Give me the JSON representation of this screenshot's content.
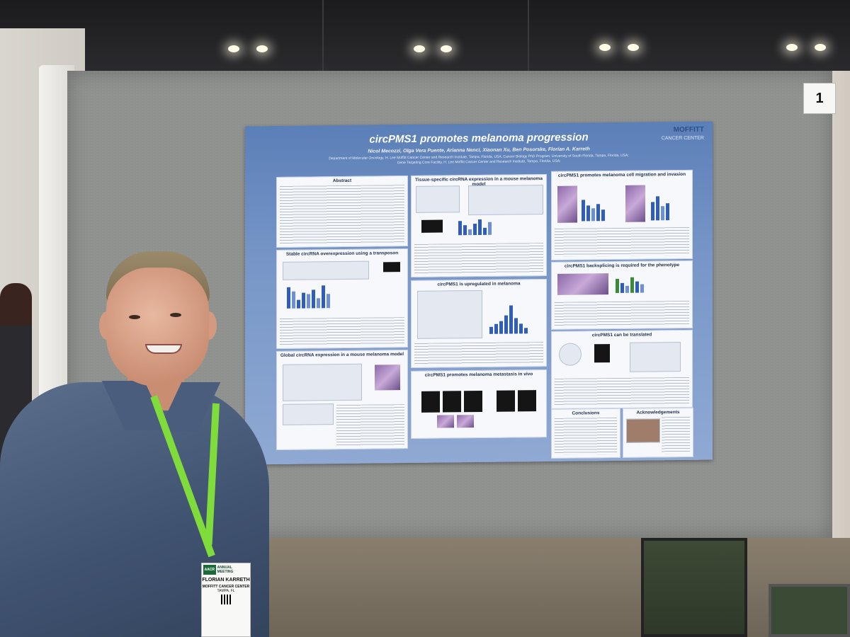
{
  "scene": {
    "board_number": "1"
  },
  "poster": {
    "title": "circPMS1 promotes melanoma progression",
    "logo": "MOFFITT",
    "logo_sub": "CANCER CENTER",
    "authors": "Nicol Mecozzi, Olga Vera Puente, Arianna Nenci, Xiaonan Xu, Ben Posorske, Florian A. Karreth",
    "affiliation_1": "Department of Molecular Oncology, H. Lee Moffitt Cancer Center and Research Institute, Tampa, Florida, USA; Cancer Biology PhD Program, University of South Florida, Tampa, Florida, USA;",
    "affiliation_2": "Gene Targeting Core Facility, H. Lee Moffitt Cancer Center and Research Institute, Tampa, Florida, USA;",
    "sections": {
      "abstract": "Abstract",
      "stable": "Stable circRNA overexpression using a transposon",
      "global": "Global circRNA expression in a mouse melanoma model",
      "tissue": "Tissue-specific circRNA expression in a mouse melanoma model",
      "upregulated": "circPMS1 is upregulated in melanoma",
      "metastasis": "circPMS1 promotes melanoma metastasis in vivo",
      "migration": "circPMS1 promotes melanoma cell migration and invasion",
      "backsplicing": "circPMS1 backsplicing is required for the phenotype",
      "translated": "circPMS1 can be translated",
      "conclusions": "Conclusions",
      "acknowledgements": "Acknowledgements"
    }
  },
  "badge": {
    "org_logo": "AACR",
    "meeting": "ANNUAL MEETING",
    "name": "FLORIAN KARRETH",
    "organization": "MOFFITT CANCER CENTER",
    "city": "TAMPA, FL"
  },
  "colors": {
    "poster_blue": "#5b7fb8",
    "lanyard_green": "#7fdc3a",
    "board_gray": "#8f918f"
  }
}
